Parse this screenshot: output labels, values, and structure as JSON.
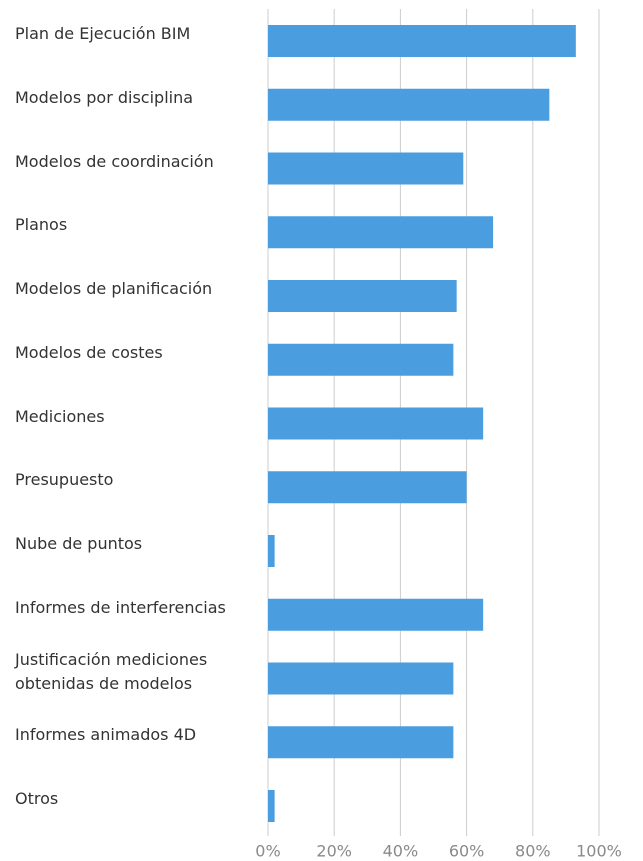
{
  "chart_data": {
    "type": "bar",
    "orientation": "horizontal",
    "categories": [
      "Plan de Ejecución BIM",
      "Modelos por disciplina",
      "Modelos de coordinación",
      "Planos",
      "Modelos de planificación",
      "Modelos de costes",
      "Mediciones",
      "Presupuesto",
      "Nube de puntos",
      "Informes de interferencias",
      "Justificación mediciones obtenidas de modelos",
      "Informes animados 4D",
      "Otros"
    ],
    "values": [
      93,
      85,
      59,
      68,
      57,
      56,
      65,
      60,
      2,
      65,
      56,
      56,
      2
    ],
    "color": "#4a9ee0",
    "xlim": [
      0,
      100
    ],
    "xticks": [
      {
        "value": 0,
        "label": "0%"
      },
      {
        "value": 20,
        "label": "20%"
      },
      {
        "value": 40,
        "label": "40%"
      },
      {
        "value": 60,
        "label": "60%"
      },
      {
        "value": 80,
        "label": "80%"
      },
      {
        "value": 100,
        "label": "100%"
      }
    ],
    "grid": true
  }
}
